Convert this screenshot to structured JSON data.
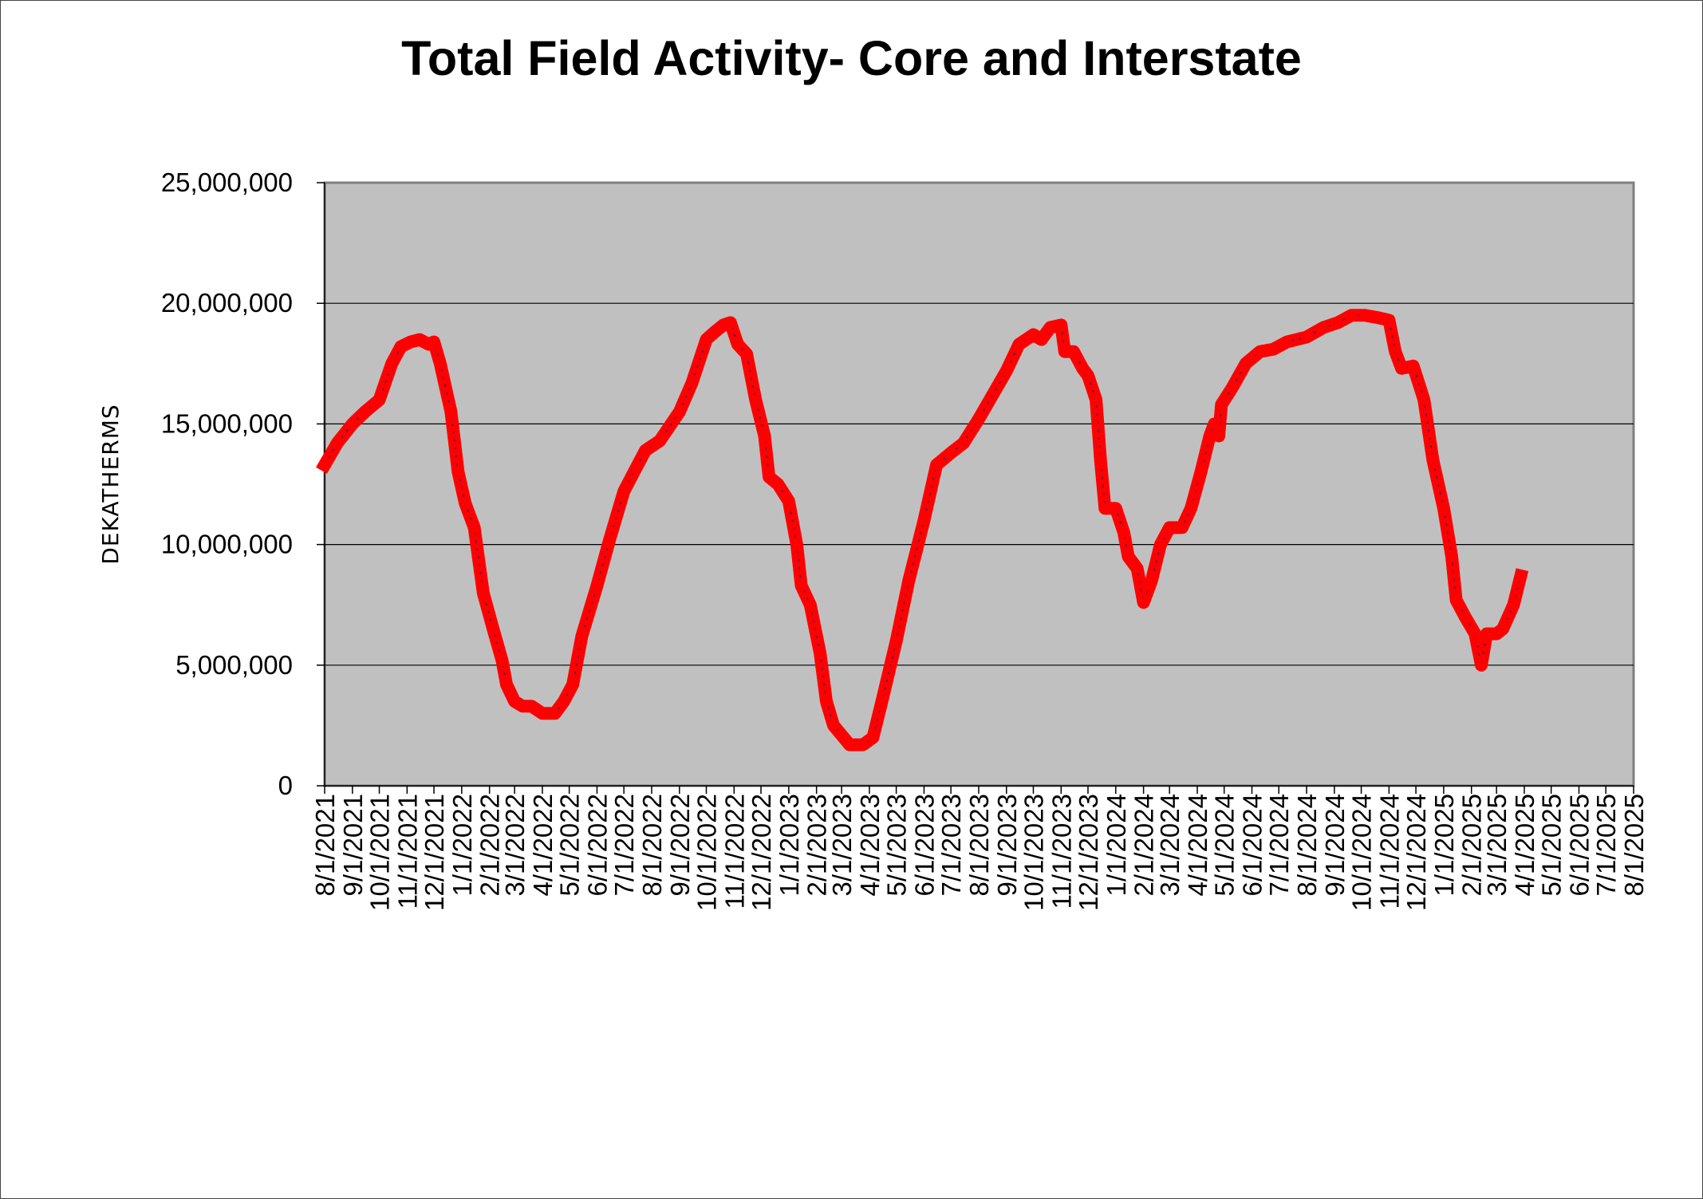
{
  "chart_data": {
    "type": "line",
    "title": "Total Field Activity- Core and Interstate",
    "xlabel": "",
    "ylabel": "DEKATHERMS",
    "ylim": [
      0,
      25000000
    ],
    "yticks": [
      0,
      5000000,
      10000000,
      15000000,
      20000000,
      25000000
    ],
    "ytick_labels": [
      "0",
      "5,000,000",
      "10,000,000",
      "15,000,000",
      "20,000,000",
      "25,000,000"
    ],
    "xlim": [
      "2021-08-01",
      "2025-08-01"
    ],
    "xtick_labels": [
      "8/1/2021",
      "9/1/2021",
      "10/1/2021",
      "11/1/2021",
      "12/1/2021",
      "1/1/2022",
      "2/1/2022",
      "3/1/2022",
      "4/1/2022",
      "5/1/2022",
      "6/1/2022",
      "7/1/2022",
      "8/1/2022",
      "9/1/2022",
      "10/1/2022",
      "11/1/2022",
      "12/1/2022",
      "1/1/2023",
      "2/1/2023",
      "3/1/2023",
      "4/1/2023",
      "5/1/2023",
      "6/1/2023",
      "7/1/2023",
      "8/1/2023",
      "9/1/2023",
      "10/1/2023",
      "11/1/2023",
      "12/1/2023",
      "1/1/2024",
      "2/1/2024",
      "3/1/2024",
      "4/1/2024",
      "5/1/2024",
      "6/1/2024",
      "7/1/2024",
      "8/1/2024",
      "9/1/2024",
      "10/1/2024",
      "11/1/2024",
      "12/1/2024",
      "1/1/2025",
      "2/1/2025",
      "3/1/2025",
      "4/1/2025",
      "5/1/2025",
      "6/1/2025",
      "7/1/2025",
      "8/1/2025"
    ],
    "grid": "horizontal",
    "background": "#c0c0c0",
    "series": [
      {
        "color": "#ff0000",
        "points": [
          [
            "2021-08-01",
            13300000
          ],
          [
            "2021-08-15",
            14200000
          ],
          [
            "2021-09-01",
            15000000
          ],
          [
            "2021-09-15",
            15500000
          ],
          [
            "2021-10-01",
            16000000
          ],
          [
            "2021-10-15",
            17500000
          ],
          [
            "2021-10-25",
            18200000
          ],
          [
            "2021-11-05",
            18400000
          ],
          [
            "2021-11-15",
            18500000
          ],
          [
            "2021-11-25",
            18300000
          ],
          [
            "2021-12-01",
            18400000
          ],
          [
            "2021-12-08",
            17500000
          ],
          [
            "2021-12-20",
            15500000
          ],
          [
            "2021-12-28",
            13000000
          ],
          [
            "2022-01-05",
            11700000
          ],
          [
            "2022-01-15",
            10700000
          ],
          [
            "2022-01-25",
            8000000
          ],
          [
            "2022-02-05",
            6500000
          ],
          [
            "2022-02-15",
            5200000
          ],
          [
            "2022-02-20",
            4200000
          ],
          [
            "2022-03-01",
            3500000
          ],
          [
            "2022-03-10",
            3300000
          ],
          [
            "2022-03-20",
            3300000
          ],
          [
            "2022-04-01",
            3000000
          ],
          [
            "2022-04-15",
            3000000
          ],
          [
            "2022-04-25",
            3500000
          ],
          [
            "2022-05-05",
            4200000
          ],
          [
            "2022-05-15",
            6200000
          ],
          [
            "2022-06-01",
            8300000
          ],
          [
            "2022-06-15",
            10200000
          ],
          [
            "2022-07-01",
            12200000
          ],
          [
            "2022-07-15",
            13200000
          ],
          [
            "2022-07-25",
            13900000
          ],
          [
            "2022-08-10",
            14300000
          ],
          [
            "2022-09-01",
            15500000
          ],
          [
            "2022-09-15",
            16700000
          ],
          [
            "2022-10-01",
            18500000
          ],
          [
            "2022-10-10",
            18800000
          ],
          [
            "2022-10-20",
            19100000
          ],
          [
            "2022-10-28",
            19200000
          ],
          [
            "2022-11-05",
            18300000
          ],
          [
            "2022-11-15",
            17900000
          ],
          [
            "2022-11-25",
            16000000
          ],
          [
            "2022-12-05",
            14500000
          ],
          [
            "2022-12-10",
            12800000
          ],
          [
            "2022-12-20",
            12500000
          ],
          [
            "2023-01-01",
            11800000
          ],
          [
            "2023-01-10",
            10000000
          ],
          [
            "2023-01-15",
            8300000
          ],
          [
            "2023-01-25",
            7500000
          ],
          [
            "2023-02-05",
            5500000
          ],
          [
            "2023-02-12",
            3500000
          ],
          [
            "2023-02-20",
            2500000
          ],
          [
            "2023-03-01",
            2100000
          ],
          [
            "2023-03-10",
            1700000
          ],
          [
            "2023-03-25",
            1700000
          ],
          [
            "2023-04-05",
            2000000
          ],
          [
            "2023-04-15",
            3500000
          ],
          [
            "2023-05-01",
            6000000
          ],
          [
            "2023-05-15",
            8500000
          ],
          [
            "2023-06-01",
            11000000
          ],
          [
            "2023-06-15",
            13300000
          ],
          [
            "2023-07-01",
            13800000
          ],
          [
            "2023-07-15",
            14200000
          ],
          [
            "2023-08-01",
            15200000
          ],
          [
            "2023-09-01",
            17200000
          ],
          [
            "2023-09-15",
            18300000
          ],
          [
            "2023-10-01",
            18700000
          ],
          [
            "2023-10-10",
            18500000
          ],
          [
            "2023-10-20",
            19000000
          ],
          [
            "2023-11-01",
            19100000
          ],
          [
            "2023-11-05",
            18000000
          ],
          [
            "2023-11-15",
            18000000
          ],
          [
            "2023-11-25",
            17300000
          ],
          [
            "2023-12-01",
            17000000
          ],
          [
            "2023-12-10",
            16000000
          ],
          [
            "2023-12-15",
            13500000
          ],
          [
            "2023-12-20",
            11500000
          ],
          [
            "2024-01-01",
            11500000
          ],
          [
            "2024-01-10",
            10500000
          ],
          [
            "2024-01-15",
            9500000
          ],
          [
            "2024-01-25",
            9000000
          ],
          [
            "2024-02-01",
            7600000
          ],
          [
            "2024-02-10",
            8500000
          ],
          [
            "2024-02-20",
            10000000
          ],
          [
            "2024-03-01",
            10700000
          ],
          [
            "2024-03-15",
            10700000
          ],
          [
            "2024-03-25",
            11500000
          ],
          [
            "2024-04-05",
            13000000
          ],
          [
            "2024-04-15",
            14500000
          ],
          [
            "2024-04-20",
            15000000
          ],
          [
            "2024-04-25",
            14500000
          ],
          [
            "2024-04-28",
            15800000
          ],
          [
            "2024-05-10",
            16500000
          ],
          [
            "2024-05-25",
            17500000
          ],
          [
            "2024-06-10",
            18000000
          ],
          [
            "2024-06-25",
            18100000
          ],
          [
            "2024-07-10",
            18400000
          ],
          [
            "2024-08-01",
            18600000
          ],
          [
            "2024-08-20",
            19000000
          ],
          [
            "2024-09-05",
            19200000
          ],
          [
            "2024-09-20",
            19500000
          ],
          [
            "2024-10-05",
            19500000
          ],
          [
            "2024-10-20",
            19400000
          ],
          [
            "2024-11-01",
            19300000
          ],
          [
            "2024-11-08",
            18000000
          ],
          [
            "2024-11-15",
            17300000
          ],
          [
            "2024-11-28",
            17400000
          ],
          [
            "2024-12-10",
            16000000
          ],
          [
            "2024-12-20",
            13500000
          ],
          [
            "2025-01-01",
            11500000
          ],
          [
            "2025-01-10",
            9500000
          ],
          [
            "2025-01-15",
            7700000
          ],
          [
            "2025-01-25",
            7000000
          ],
          [
            "2025-02-05",
            6300000
          ],
          [
            "2025-02-12",
            5000000
          ],
          [
            "2025-02-18",
            6300000
          ],
          [
            "2025-03-01",
            6300000
          ],
          [
            "2025-03-08",
            6500000
          ],
          [
            "2025-03-20",
            7500000
          ],
          [
            "2025-03-28",
            8700000
          ]
        ]
      }
    ]
  }
}
